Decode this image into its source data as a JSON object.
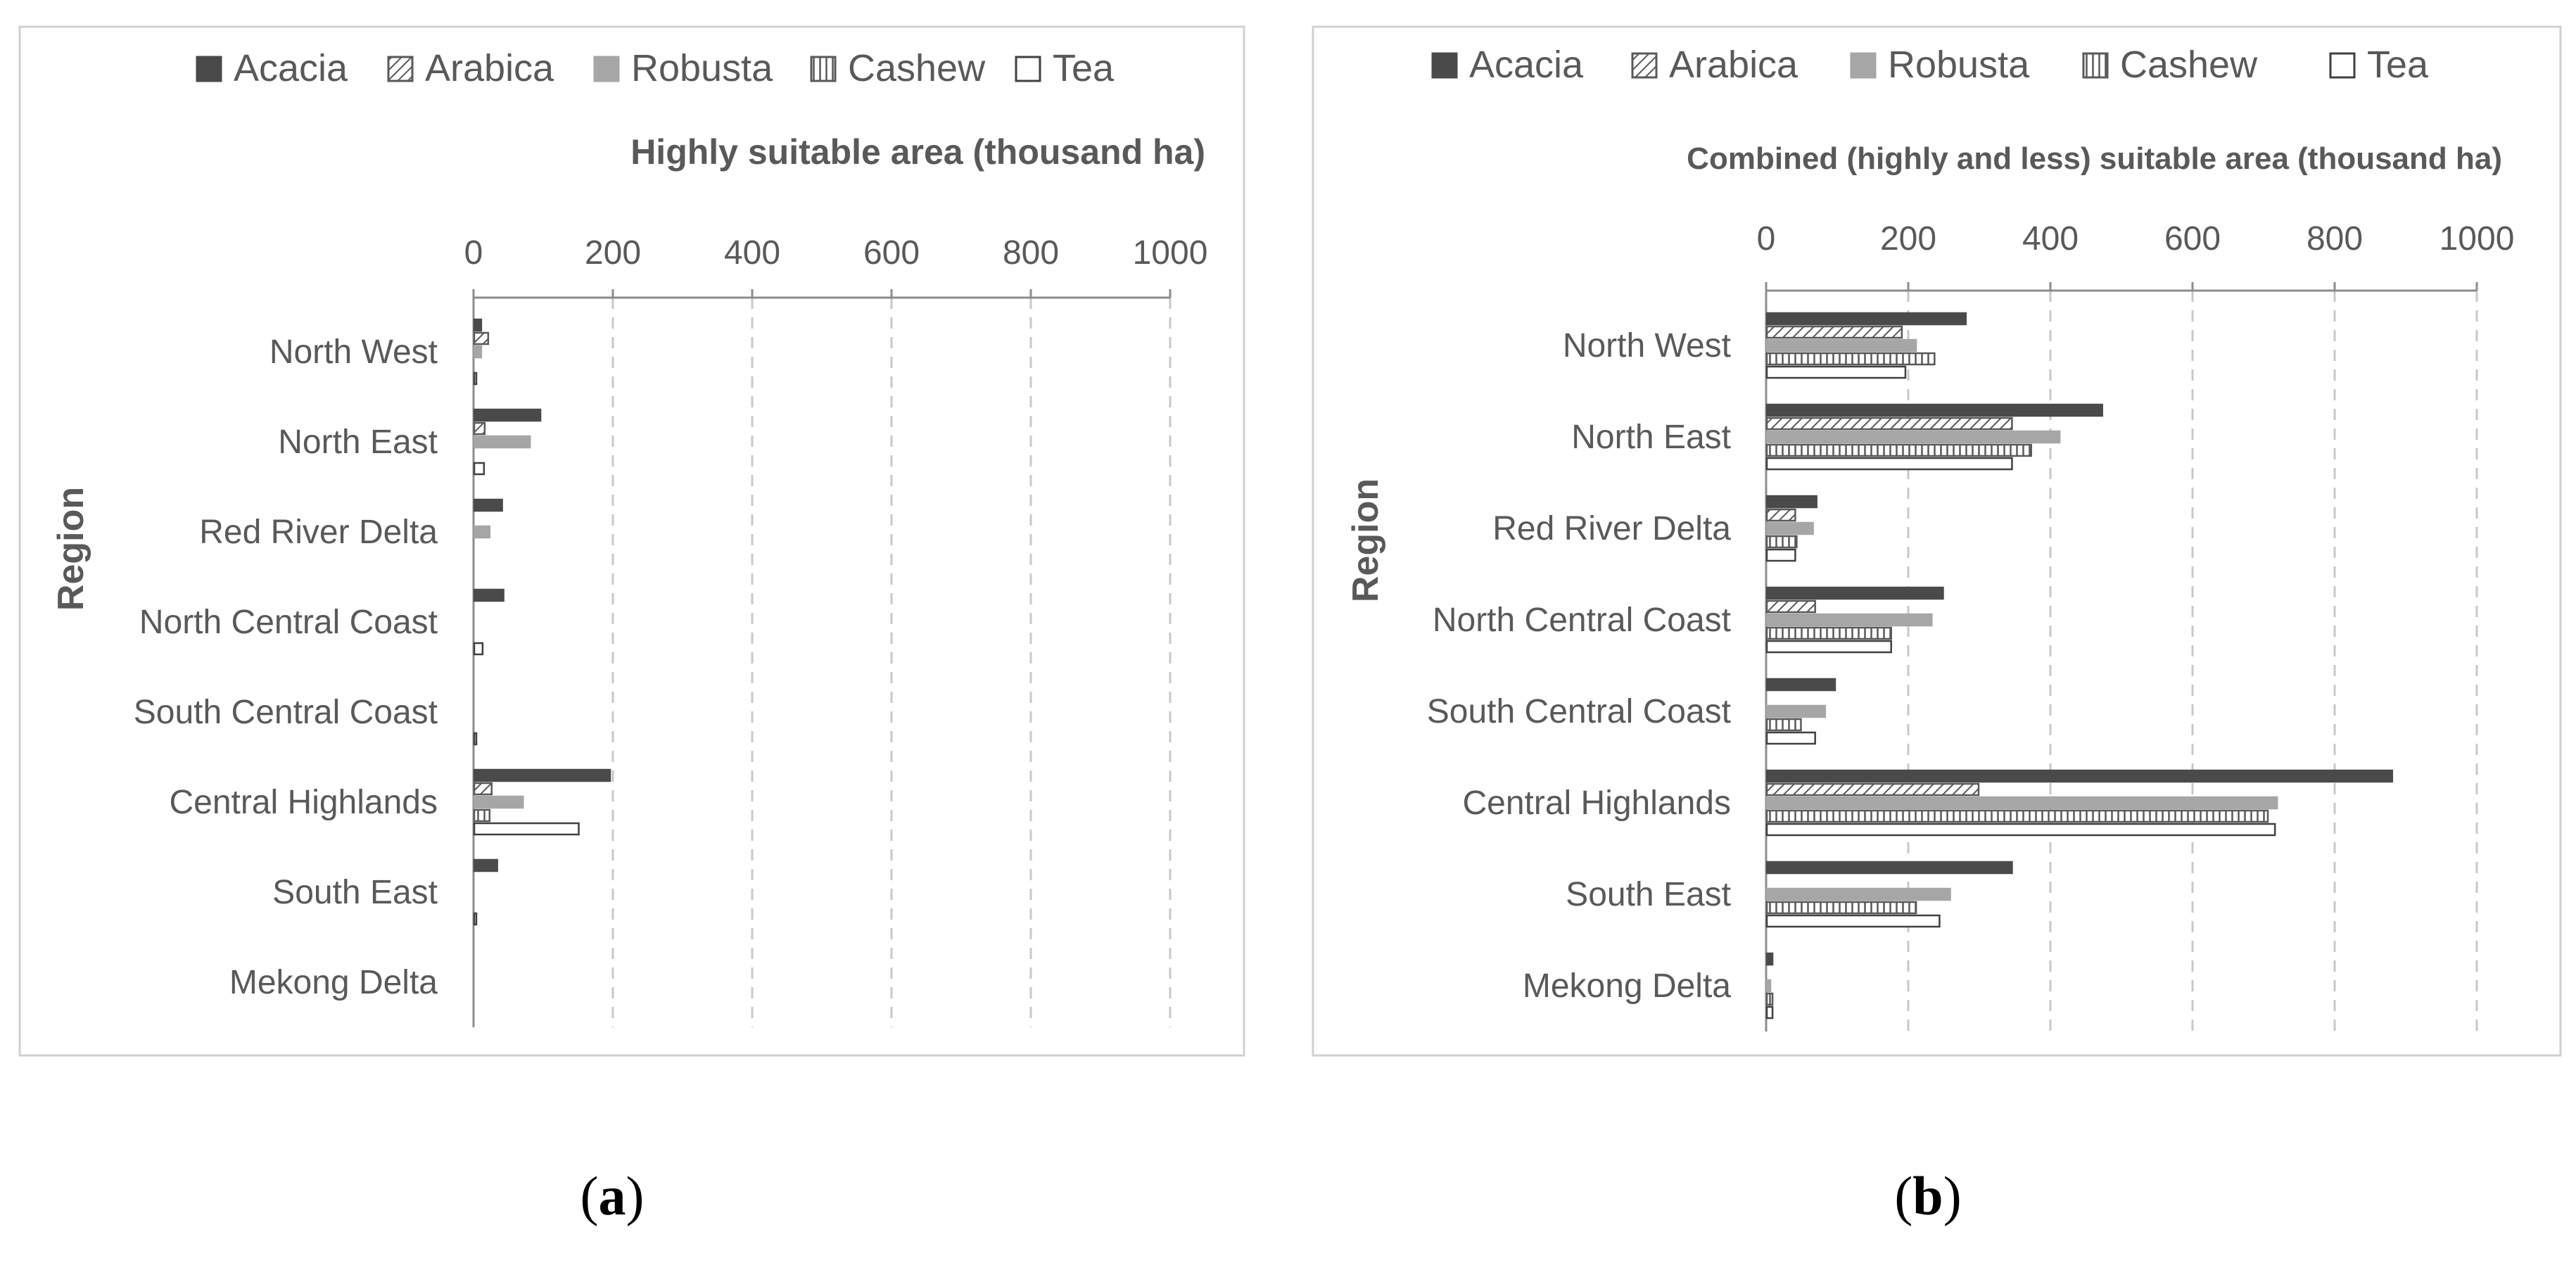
{
  "chart_data": [
    {
      "panel": "a",
      "type": "bar",
      "orientation": "horizontal",
      "title": "Highly suitable area (thousand ha)",
      "ylabel": "Region",
      "xlabel": "",
      "xlim": [
        0,
        1000
      ],
      "xticks": [
        0,
        200,
        400,
        600,
        800,
        1000
      ],
      "grid": true,
      "legend_position": "top",
      "categories": [
        "North West",
        "North East",
        "Red River Delta",
        "North Central Coast",
        "South Central Coast",
        "Central Highlands",
        "South East",
        "Mekong Delta"
      ],
      "series": [
        {
          "name": "Acacia",
          "values": [
            10,
            95,
            40,
            42,
            0,
            195,
            33,
            0
          ]
        },
        {
          "name": "Arabica",
          "values": [
            20,
            15,
            0,
            0,
            0,
            25,
            0,
            0
          ]
        },
        {
          "name": "Robusta",
          "values": [
            10,
            80,
            22,
            0,
            0,
            70,
            0,
            0
          ]
        },
        {
          "name": "Cashew",
          "values": [
            0,
            0,
            0,
            0,
            0,
            22,
            0,
            0
          ]
        },
        {
          "name": "Tea",
          "values": [
            2,
            14,
            0,
            12,
            3,
            150,
            2,
            0
          ]
        }
      ]
    },
    {
      "panel": "b",
      "type": "bar",
      "orientation": "horizontal",
      "title": "Combined (highly and less) suitable area (thousand ha)",
      "ylabel": "Region",
      "xlabel": "",
      "xlim": [
        0,
        1000
      ],
      "xticks": [
        0,
        200,
        400,
        600,
        800,
        1000
      ],
      "grid": true,
      "legend_position": "top",
      "categories": [
        "North West",
        "North East",
        "Red River Delta",
        "North Central Coast",
        "South Central Coast",
        "Central Highlands",
        "South East",
        "Mekong Delta"
      ],
      "series": [
        {
          "name": "Acacia",
          "values": [
            280,
            472,
            70,
            248,
            96,
            880,
            345,
            8
          ]
        },
        {
          "name": "Arabica",
          "values": [
            190,
            345,
            40,
            68,
            0,
            298,
            0,
            0
          ]
        },
        {
          "name": "Robusta",
          "values": [
            210,
            412,
            65,
            232,
            82,
            718,
            258,
            5
          ]
        },
        {
          "name": "Cashew",
          "values": [
            236,
            372,
            42,
            175,
            48,
            705,
            210,
            8
          ]
        },
        {
          "name": "Tea",
          "values": [
            195,
            345,
            40,
            175,
            68,
            715,
            243,
            8
          ]
        }
      ]
    }
  ],
  "legend": [
    "Acacia",
    "Arabica",
    "Robusta",
    "Cashew",
    "Tea"
  ],
  "captions": {
    "a": "a",
    "b": "b"
  },
  "colors": {
    "acacia": "#4a4a4a",
    "robusta": "#a6a6a6",
    "text": "#595959",
    "axis": "#8c8c8c",
    "grid": "#c8c8c8",
    "border": "#d0d0d0"
  }
}
